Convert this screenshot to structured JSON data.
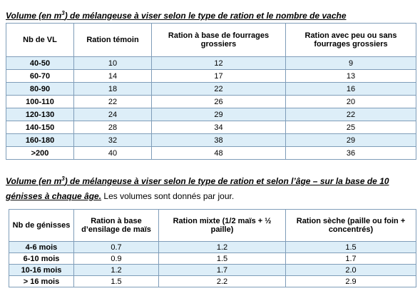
{
  "title1": {
    "before": "Volume (en m",
    "sup": "3",
    "after": ") de mélangeuse à viser selon le type de ration et le nombre de vache"
  },
  "table1": {
    "header": [
      "Nb de VL",
      "Ration témoin",
      "Ration à base de fourrages grossiers",
      "Ration avec peu ou sans fourrages grossiers"
    ],
    "rows": [
      [
        "40-50",
        "10",
        "12",
        "9"
      ],
      [
        "60-70",
        "14",
        "17",
        "13"
      ],
      [
        "80-90",
        "18",
        "22",
        "16"
      ],
      [
        "100-110",
        "22",
        "26",
        "20"
      ],
      [
        "120-130",
        "24",
        "29",
        "22"
      ],
      [
        "140-150",
        "28",
        "34",
        "25"
      ],
      [
        "160-180",
        "32",
        "38",
        "29"
      ],
      [
        ">200",
        "40",
        "48",
        "36"
      ]
    ]
  },
  "title2": {
    "before": "Volume (en m",
    "sup": "3",
    "after": ") de mélangeuse à viser selon le type de ration et selon l’âge – sur la base de 10 génisses à chaque âge.",
    "note": " Les volumes sont donnés par jour."
  },
  "table2": {
    "header": [
      "Nb de génisses",
      "Ration à base d’ensilage de maïs",
      "Ration mixte  (1/2 maïs + ½ paille)",
      "Ration sèche (paille ou foin + concentrés)"
    ],
    "rows": [
      [
        "4-6 mois",
        "0.7",
        "1.2",
        "1.5"
      ],
      [
        "6-10 mois",
        "0.9",
        "1.5",
        "1.7"
      ],
      [
        "10-16 mois",
        "1.2",
        "1.7",
        "2.0"
      ],
      [
        "> 16 mois",
        "1.5",
        "2.2",
        "2.9"
      ]
    ]
  }
}
